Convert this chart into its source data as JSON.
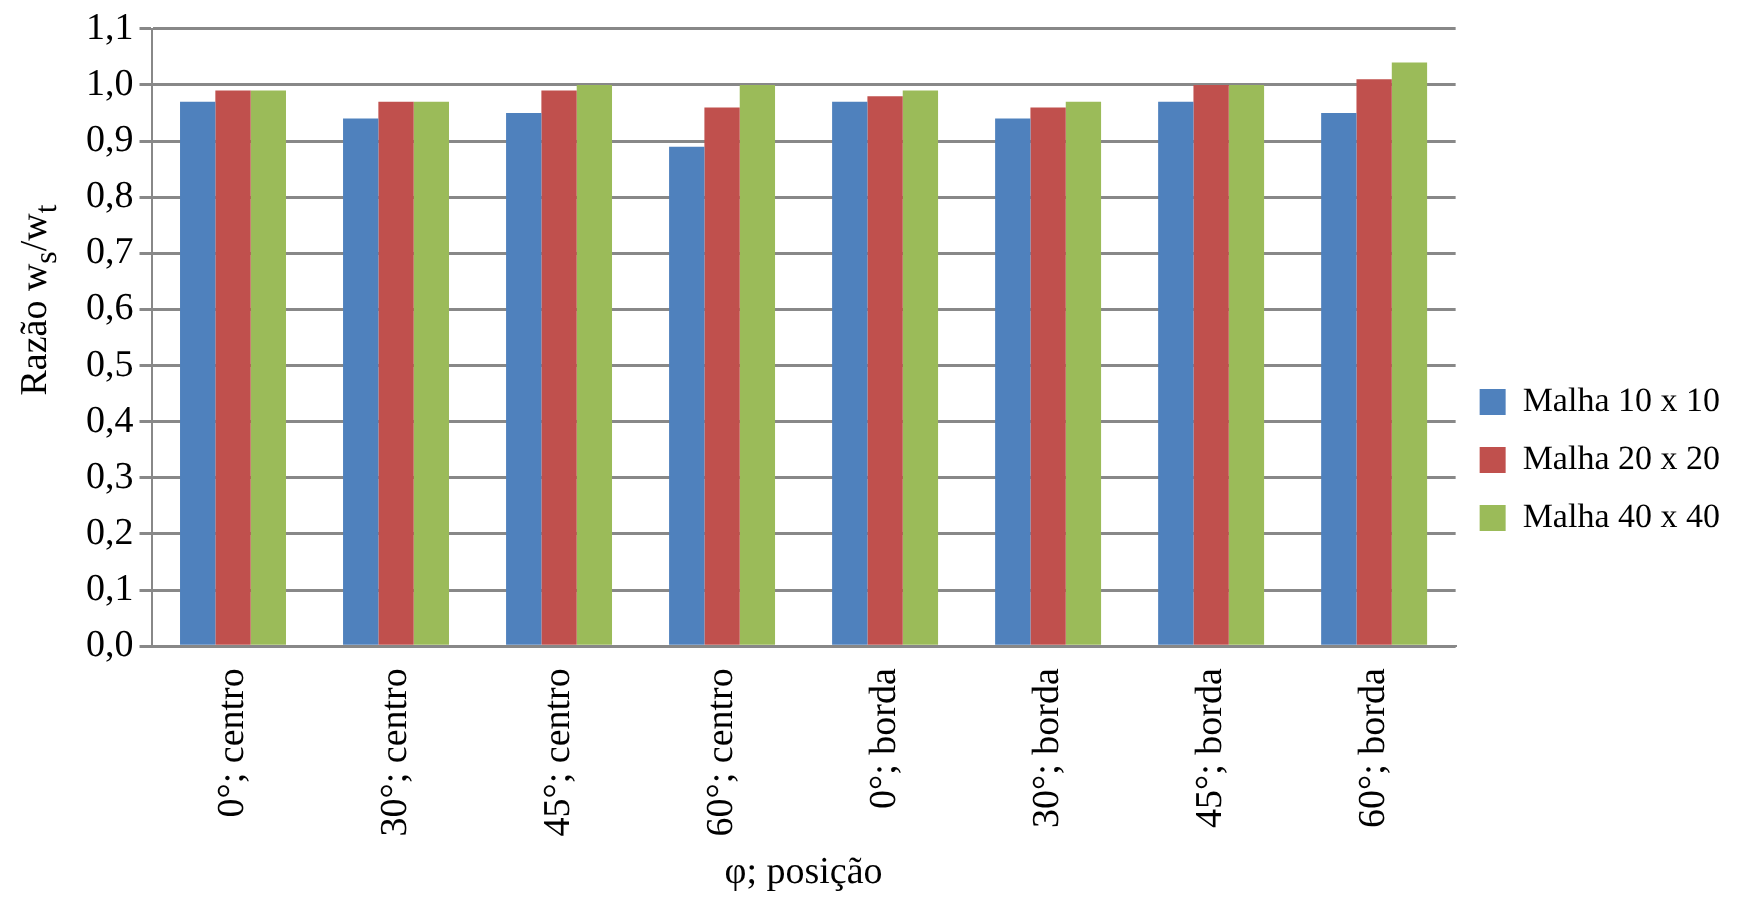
{
  "chart_data": {
    "type": "bar",
    "ylabel": "Razão w$_{s}$/w$_{t}$",
    "xlabel": "φ; posição",
    "categories": [
      "0°; centro",
      "30°; centro",
      "45°; centro",
      "60°; centro",
      "0°; borda",
      "30°; borda",
      "45°; borda",
      "60°; borda"
    ],
    "series": [
      {
        "name": "Malha 10 x 10",
        "color": "#4f81bd",
        "values": [
          0.97,
          0.94,
          0.95,
          0.89,
          0.97,
          0.94,
          0.97,
          0.95
        ]
      },
      {
        "name": "Malha 20 x 20",
        "color": "#c0504d",
        "values": [
          0.99,
          0.97,
          0.99,
          0.96,
          0.98,
          0.96,
          1.0,
          1.01
        ]
      },
      {
        "name": "Malha 40 x 40",
        "color": "#9bbb59",
        "values": [
          0.99,
          0.97,
          1.0,
          1.0,
          0.99,
          0.97,
          1.0,
          1.04
        ]
      }
    ],
    "ylim": [
      0,
      1.1
    ],
    "yticks": [
      {
        "value": 0,
        "label": "0,0"
      },
      {
        "value": 0.1,
        "label": "0,1"
      },
      {
        "value": 0.2,
        "label": "0,2"
      },
      {
        "value": 0.3,
        "label": "0,3"
      },
      {
        "value": 0.4,
        "label": "0,4"
      },
      {
        "value": 0.5,
        "label": "0,5"
      },
      {
        "value": 0.6,
        "label": "0,6"
      },
      {
        "value": 0.7,
        "label": "0,7"
      },
      {
        "value": 0.8,
        "label": "0,8"
      },
      {
        "value": 0.9,
        "label": "0,9"
      },
      {
        "value": 1.0,
        "label": "1,0"
      },
      {
        "value": 1.1,
        "label": "1,1"
      }
    ],
    "grid": "y",
    "legend": "right"
  }
}
